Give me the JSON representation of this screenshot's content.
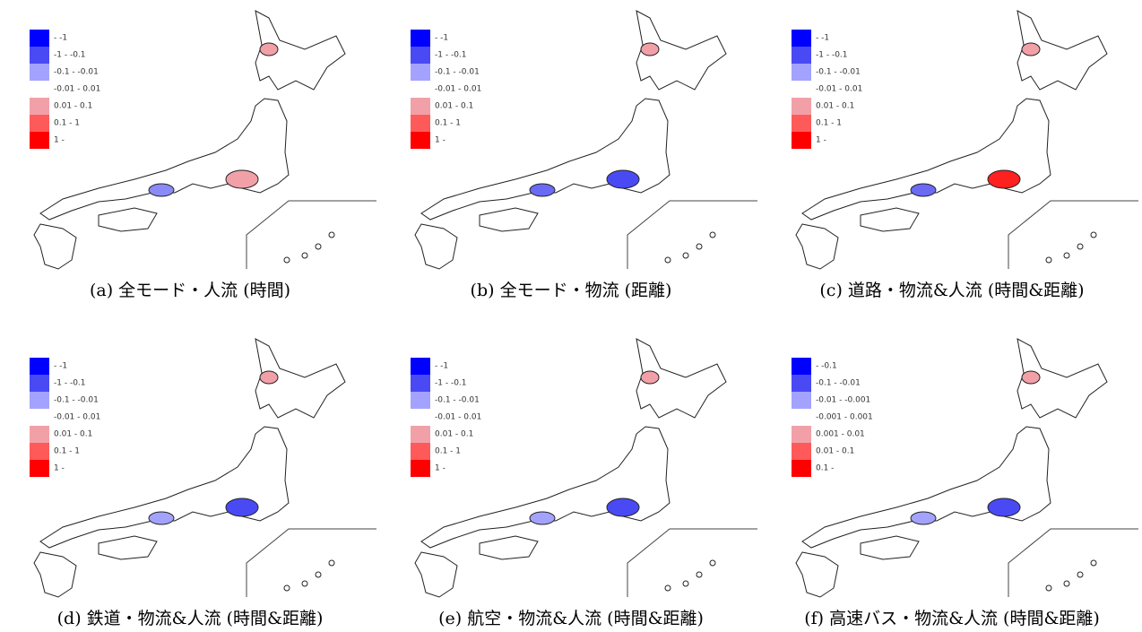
{
  "panels": [
    {
      "caption": "(a) 全モード・人流 (時間)",
      "legend": [
        "- -1",
        "-1 - -0.1",
        "-0.1 - -0.01",
        "-0.01 - 0.01",
        "0.01 - 0.1",
        "0.1 - 1",
        "1 -"
      ]
    },
    {
      "caption": "(b) 全モード・物流 (距離)",
      "legend": [
        "- -1",
        "-1 - -0.1",
        "-0.1 - -0.01",
        "-0.01 - 0.01",
        "0.01 - 0.1",
        "0.1 - 1",
        "1 -"
      ]
    },
    {
      "caption": "(c) 道路・物流&人流 (時間&距離)",
      "legend": [
        "- -1",
        "-1 - -0.1",
        "-0.1 - -0.01",
        "-0.01 - 0.01",
        "0.01 - 0.1",
        "0.1 - 1",
        "1 -"
      ]
    },
    {
      "caption": "(d) 鉄道・物流&人流 (時間&距離)",
      "legend": [
        "- -1",
        "-1 - -0.1",
        "-0.1 - -0.01",
        "-0.01 - 0.01",
        "0.01 - 0.1",
        "0.1 - 1",
        "1 -"
      ]
    },
    {
      "caption": "(e) 航空・物流&人流 (時間&距離)",
      "legend": [
        "- -1",
        "-1 - -0.1",
        "-0.1 - -0.01",
        "-0.01 - 0.01",
        "0.01 - 0.1",
        "0.1 - 1",
        "1 -"
      ]
    },
    {
      "caption": "(f) 高速バス・物流&人流 (時間&距離)",
      "legend": [
        "- -0.1",
        "-0.1 - -0.01",
        "-0.01 - -0.001",
        "-0.001 - 0.001",
        "0.001 - 0.01",
        "0.01 - 0.1",
        "0.1 -"
      ]
    }
  ]
}
